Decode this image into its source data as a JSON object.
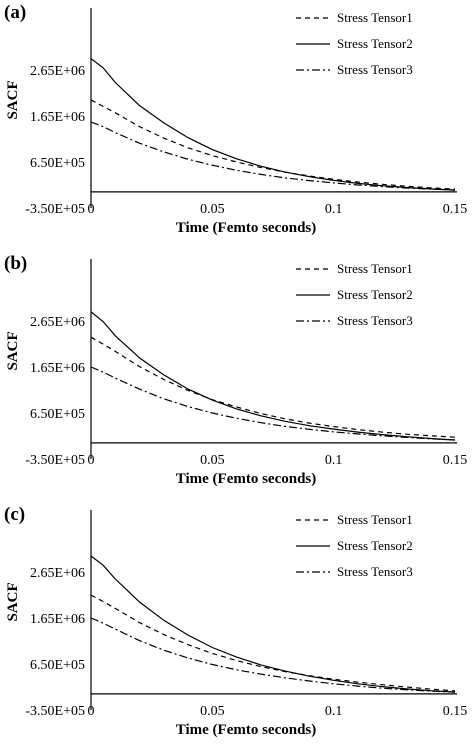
{
  "figure": {
    "panels": [
      {
        "label": "(a)",
        "chart_data": {
          "type": "line",
          "xlabel": "Time  (Femto seconds)",
          "ylabel": "SACF",
          "xlim": [
            0,
            0.15
          ],
          "ylim": [
            -350000,
            4000000
          ],
          "xticks": [
            0,
            0.05,
            0.1,
            0.15
          ],
          "xtick_labels": [
            "0",
            "0.05",
            "0.1",
            "0.15"
          ],
          "yticks": [
            -350000,
            650000,
            1650000,
            2650000
          ],
          "ytick_labels": [
            "-3.50E+05",
            "6.50E+05",
            "1.65E+06",
            "2.65E+06"
          ],
          "legend_position": "top-right",
          "grid": false,
          "x": [
            0,
            0.005,
            0.01,
            0.02,
            0.03,
            0.04,
            0.05,
            0.06,
            0.07,
            0.08,
            0.09,
            0.1,
            0.11,
            0.12,
            0.13,
            0.14,
            0.15
          ],
          "series": [
            {
              "name": "Stress Tensor1",
              "style": "dashed",
              "values": [
                2000000,
                1860000,
                1720000,
                1420000,
                1170000,
                960000,
                790000,
                650000,
                530000,
                430000,
                345000,
                275000,
                215000,
                165000,
                125000,
                90000,
                60000
              ]
            },
            {
              "name": "Stress Tensor2",
              "style": "solid",
              "values": [
                2900000,
                2700000,
                2380000,
                1880000,
                1500000,
                1180000,
                920000,
                720000,
                560000,
                430000,
                330000,
                250000,
                185000,
                135000,
                95000,
                65000,
                40000
              ]
            },
            {
              "name": "Stress Tensor3",
              "style": "dashdot",
              "values": [
                1520000,
                1420000,
                1290000,
                1060000,
                870000,
                710000,
                580000,
                470000,
                380000,
                305000,
                245000,
                195000,
                150000,
                115000,
                85000,
                60000,
                40000
              ]
            }
          ]
        }
      },
      {
        "label": "(b)",
        "chart_data": {
          "type": "line",
          "xlabel": "Time  (Femto seconds)",
          "ylabel": "SACF",
          "xlim": [
            0,
            0.15
          ],
          "ylim": [
            -350000,
            4000000
          ],
          "xticks": [
            0,
            0.05,
            0.1,
            0.15
          ],
          "xtick_labels": [
            "0",
            "0.05",
            "0.1",
            "0.15"
          ],
          "yticks": [
            -350000,
            650000,
            1650000,
            2650000
          ],
          "ytick_labels": [
            "-3.50E+05",
            "6.50E+05",
            "1.65E+06",
            "2.65E+06"
          ],
          "legend_position": "top-right",
          "grid": false,
          "x": [
            0,
            0.005,
            0.01,
            0.02,
            0.03,
            0.04,
            0.05,
            0.06,
            0.07,
            0.08,
            0.09,
            0.1,
            0.11,
            0.12,
            0.13,
            0.14,
            0.15
          ],
          "series": [
            {
              "name": "Stress Tensor1",
              "style": "dashed",
              "values": [
                2300000,
                2150000,
                1990000,
                1660000,
                1380000,
                1140000,
                940000,
                780000,
                640000,
                525000,
                430000,
                355000,
                290000,
                235000,
                190000,
                155000,
                125000
              ]
            },
            {
              "name": "Stress Tensor2",
              "style": "solid",
              "values": [
                2850000,
                2640000,
                2330000,
                1850000,
                1480000,
                1170000,
                930000,
                740000,
                590000,
                470000,
                375000,
                300000,
                235000,
                180000,
                135000,
                95000,
                60000
              ]
            },
            {
              "name": "Stress Tensor3",
              "style": "dashdot",
              "values": [
                1650000,
                1540000,
                1410000,
                1170000,
                960000,
                790000,
                650000,
                535000,
                440000,
                360000,
                295000,
                240000,
                195000,
                155000,
                120000,
                90000,
                65000
              ]
            }
          ]
        }
      },
      {
        "label": "(c)",
        "chart_data": {
          "type": "line",
          "xlabel": "Time  (Femto seconds)",
          "ylabel": "SACF",
          "xlim": [
            0,
            0.15
          ],
          "ylim": [
            -350000,
            4000000
          ],
          "xticks": [
            0,
            0.05,
            0.1,
            0.15
          ],
          "xtick_labels": [
            "0",
            "0.05",
            "0.1",
            "0.15"
          ],
          "yticks": [
            -350000,
            650000,
            1650000,
            2650000
          ],
          "ytick_labels": [
            "-3.50E+05",
            "6.50E+05",
            "1.65E+06",
            "2.65E+06"
          ],
          "legend_position": "top-right",
          "grid": false,
          "x": [
            0,
            0.005,
            0.01,
            0.02,
            0.03,
            0.04,
            0.05,
            0.06,
            0.07,
            0.08,
            0.09,
            0.1,
            0.11,
            0.12,
            0.13,
            0.14,
            0.15
          ],
          "series": [
            {
              "name": "Stress Tensor1",
              "style": "dashed",
              "values": [
                2150000,
                2010000,
                1860000,
                1550000,
                1290000,
                1070000,
                880000,
                725000,
                595000,
                485000,
                395000,
                320000,
                255000,
                200000,
                150000,
                105000,
                65000
              ]
            },
            {
              "name": "Stress Tensor2",
              "style": "solid",
              "values": [
                3000000,
                2800000,
                2500000,
                2000000,
                1600000,
                1280000,
                1010000,
                800000,
                630000,
                495000,
                385000,
                295000,
                220000,
                160000,
                110000,
                70000,
                40000
              ]
            },
            {
              "name": "Stress Tensor3",
              "style": "dashdot",
              "values": [
                1650000,
                1540000,
                1410000,
                1160000,
                950000,
                780000,
                640000,
                525000,
                430000,
                350000,
                280000,
                220000,
                170000,
                125000,
                90000,
                60000,
                40000
              ]
            }
          ]
        }
      }
    ]
  }
}
